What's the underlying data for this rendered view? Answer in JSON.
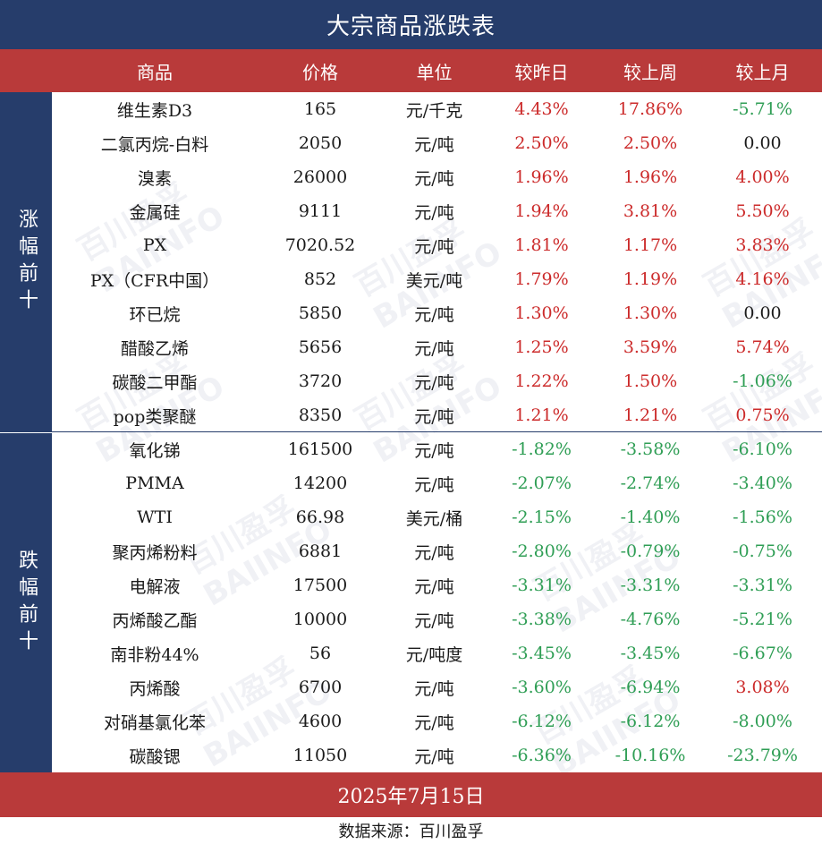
{
  "title": "大宗商品涨跌表",
  "headers": [
    "商品",
    "价格",
    "单位",
    "较昨日",
    "较上周",
    "较上月"
  ],
  "side_labels": {
    "top": "涨幅前十",
    "bottom": "跌幅前十"
  },
  "rows": [
    {
      "name": "维生素D3",
      "price": "165",
      "unit": "元/千克",
      "d": "4.43%",
      "w": "17.86%",
      "m": "-5.71%"
    },
    {
      "name": "二氯丙烷-白料",
      "price": "2050",
      "unit": "元/吨",
      "d": "2.50%",
      "w": "2.50%",
      "m": "0.00"
    },
    {
      "name": "溴素",
      "price": "26000",
      "unit": "元/吨",
      "d": "1.96%",
      "w": "1.96%",
      "m": "4.00%"
    },
    {
      "name": "金属硅",
      "price": "9111",
      "unit": "元/吨",
      "d": "1.94%",
      "w": "3.81%",
      "m": "5.50%"
    },
    {
      "name": "PX",
      "price": "7020.52",
      "unit": "元/吨",
      "d": "1.81%",
      "w": "1.17%",
      "m": "3.83%"
    },
    {
      "name": "PX（CFR中国）",
      "price": "852",
      "unit": "美元/吨",
      "d": "1.79%",
      "w": "1.19%",
      "m": "4.16%"
    },
    {
      "name": "环已烷",
      "price": "5850",
      "unit": "元/吨",
      "d": "1.30%",
      "w": "1.30%",
      "m": "0.00"
    },
    {
      "name": "醋酸乙烯",
      "price": "5656",
      "unit": "元/吨",
      "d": "1.25%",
      "w": "3.59%",
      "m": "5.74%"
    },
    {
      "name": "碳酸二甲酯",
      "price": "3720",
      "unit": "元/吨",
      "d": "1.22%",
      "w": "1.50%",
      "m": "-1.06%"
    },
    {
      "name": "pop类聚醚",
      "price": "8350",
      "unit": "元/吨",
      "d": "1.21%",
      "w": "1.21%",
      "m": "0.75%"
    },
    {
      "name": "氧化锑",
      "price": "161500",
      "unit": "元/吨",
      "d": "-1.82%",
      "w": "-3.58%",
      "m": "-6.10%"
    },
    {
      "name": "PMMA",
      "price": "14200",
      "unit": "元/吨",
      "d": "-2.07%",
      "w": "-2.74%",
      "m": "-3.40%"
    },
    {
      "name": "WTI",
      "price": "66.98",
      "unit": "美元/桶",
      "d": "-2.15%",
      "w": "-1.40%",
      "m": "-1.56%"
    },
    {
      "name": "聚丙烯粉料",
      "price": "6881",
      "unit": "元/吨",
      "d": "-2.80%",
      "w": "-0.79%",
      "m": "-0.75%"
    },
    {
      "name": "电解液",
      "price": "17500",
      "unit": "元/吨",
      "d": "-3.31%",
      "w": "-3.31%",
      "m": "-3.31%"
    },
    {
      "name": "丙烯酸乙酯",
      "price": "10000",
      "unit": "元/吨",
      "d": "-3.38%",
      "w": "-4.76%",
      "m": "-5.21%"
    },
    {
      "name": "南非粉44%",
      "price": "56",
      "unit": "元/吨度",
      "d": "-3.45%",
      "w": "-3.45%",
      "m": "-6.67%"
    },
    {
      "name": "丙烯酸",
      "price": "6700",
      "unit": "元/吨",
      "d": "-3.60%",
      "w": "-6.94%",
      "m": "3.08%"
    },
    {
      "name": "对硝基氯化苯",
      "price": "4600",
      "unit": "元/吨",
      "d": "-6.12%",
      "w": "-6.12%",
      "m": "-8.00%"
    },
    {
      "name": "碳酸锶",
      "price": "11050",
      "unit": "元/吨",
      "d": "-6.36%",
      "w": "-10.16%",
      "m": "-23.79%"
    }
  ],
  "watermark": {
    "cn": "百川盈孚",
    "en": "BAIINFO"
  },
  "date": "2025年7月15日",
  "source": "数据来源：百川盈孚",
  "colors": {
    "navy": "#263d6b",
    "red_band": "#b93a3a",
    "positive": "#cc2b2b",
    "negative": "#2f9e55"
  }
}
